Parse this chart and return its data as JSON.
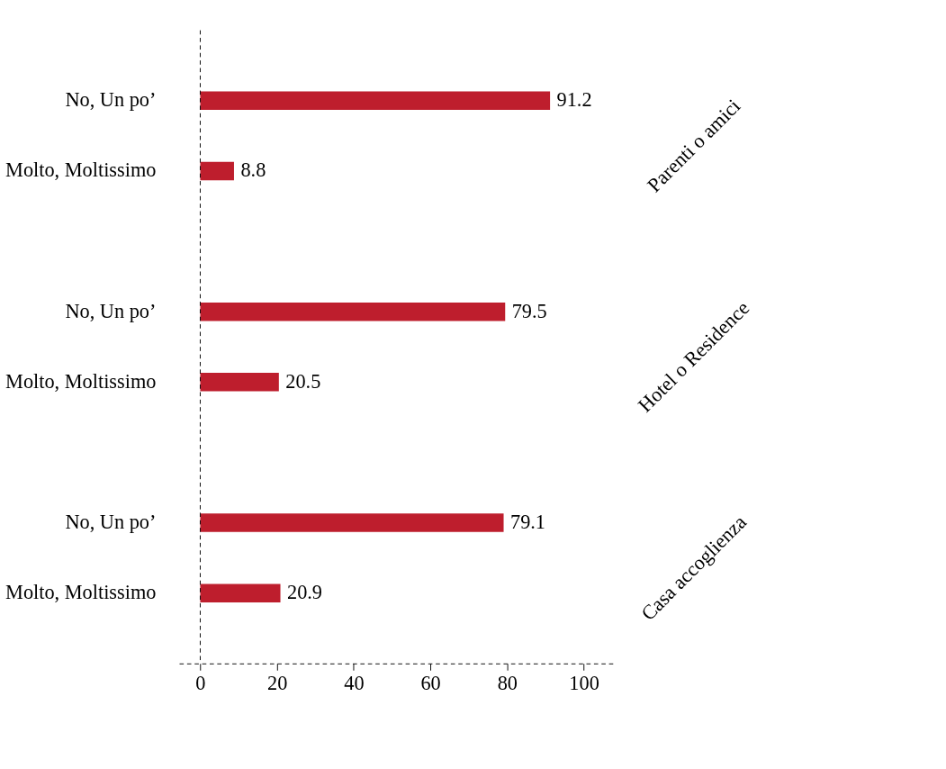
{
  "chart_data": {
    "type": "bar",
    "orientation": "horizontal",
    "categories": [
      "No, Un po’",
      "Molto, Moltissimo",
      "No, Un po’",
      "Molto, Moltissimo",
      "No, Un po’",
      "Molto, Moltissimo"
    ],
    "values": [
      91.2,
      8.8,
      79.5,
      20.5,
      79.1,
      20.9
    ],
    "color": "#be1e2d",
    "data_labels": true,
    "xlim": [
      -5.5,
      108
    ],
    "xticks": [
      0,
      20,
      40,
      60,
      80,
      100
    ],
    "ref_lines": [
      {
        "axis": "x",
        "value": 0,
        "line_style": "dashed"
      }
    ],
    "annotations": [
      "Parenti o amici",
      "Hotel o Residence",
      "Casa accoglienza"
    ]
  }
}
